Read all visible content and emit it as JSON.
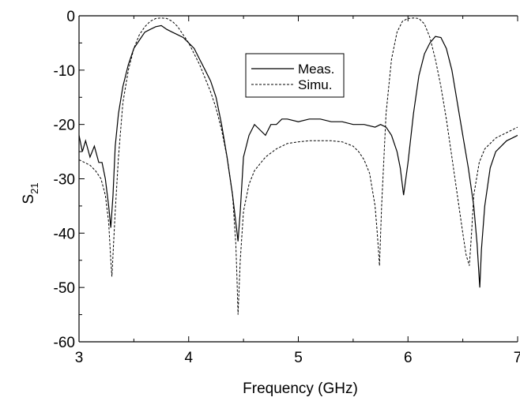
{
  "chart_data": {
    "type": "line",
    "xlabel": "Frequency (GHz)",
    "ylabel_main": "S",
    "ylabel_sub": "21",
    "xlim": [
      3,
      7
    ],
    "ylim": [
      -60,
      0
    ],
    "xticks": [
      3,
      4,
      5,
      6,
      7
    ],
    "xtick_labels": [
      "3",
      "4",
      "5",
      "6",
      "7"
    ],
    "yticks": [
      0,
      -10,
      -20,
      -30,
      -40,
      -50,
      -60
    ],
    "ytick_labels": [
      "0",
      "-10",
      "-20",
      "-30",
      "-40",
      "-50",
      "-60"
    ],
    "grid": false,
    "legend_position": "top-center",
    "series": [
      {
        "name": "Meas.",
        "style": "solid",
        "x": [
          3.0,
          3.03,
          3.06,
          3.1,
          3.14,
          3.18,
          3.21,
          3.24,
          3.27,
          3.29,
          3.31,
          3.33,
          3.36,
          3.4,
          3.45,
          3.5,
          3.55,
          3.6,
          3.65,
          3.7,
          3.75,
          3.8,
          3.85,
          3.9,
          3.95,
          4.0,
          4.05,
          4.1,
          4.15,
          4.2,
          4.25,
          4.3,
          4.35,
          4.4,
          4.43,
          4.45,
          4.47,
          4.5,
          4.55,
          4.6,
          4.65,
          4.7,
          4.75,
          4.8,
          4.85,
          4.9,
          5.0,
          5.1,
          5.2,
          5.3,
          5.4,
          5.5,
          5.6,
          5.7,
          5.75,
          5.8,
          5.85,
          5.9,
          5.93,
          5.96,
          6.0,
          6.05,
          6.1,
          6.15,
          6.2,
          6.25,
          6.3,
          6.35,
          6.4,
          6.45,
          6.5,
          6.55,
          6.6,
          6.63,
          6.655,
          6.67,
          6.7,
          6.75,
          6.8,
          6.85,
          6.9,
          6.95,
          7.0
        ],
        "y": [
          -22,
          -25,
          -23,
          -26,
          -24,
          -27,
          -27,
          -30,
          -35,
          -39,
          -33,
          -24,
          -18,
          -13,
          -9,
          -6,
          -4.5,
          -3,
          -2.5,
          -2,
          -1.8,
          -2.5,
          -3,
          -3.5,
          -4,
          -5,
          -6,
          -8,
          -10,
          -12,
          -15,
          -20,
          -26,
          -33,
          -38,
          -41.5,
          -36,
          -26,
          -22,
          -20,
          -21,
          -22,
          -20,
          -20,
          -19,
          -19,
          -19.5,
          -19,
          -19,
          -19.5,
          -19.5,
          -20,
          -20,
          -20.5,
          -20,
          -20.5,
          -22,
          -25,
          -28,
          -33,
          -27,
          -18,
          -11,
          -7,
          -5,
          -3.8,
          -4,
          -6,
          -10,
          -16,
          -22,
          -28,
          -35,
          -42,
          -50,
          -43,
          -35,
          -28,
          -25,
          -24,
          -23,
          -22.5,
          -22
        ]
      },
      {
        "name": "Simu.",
        "style": "dashed",
        "x": [
          3.0,
          3.05,
          3.1,
          3.15,
          3.2,
          3.24,
          3.27,
          3.29,
          3.3,
          3.31,
          3.33,
          3.36,
          3.4,
          3.45,
          3.5,
          3.55,
          3.6,
          3.65,
          3.7,
          3.75,
          3.8,
          3.85,
          3.9,
          3.95,
          4.0,
          4.05,
          4.1,
          4.15,
          4.2,
          4.25,
          4.3,
          4.35,
          4.4,
          4.43,
          4.44,
          4.45,
          4.47,
          4.5,
          4.55,
          4.6,
          4.7,
          4.8,
          4.9,
          5.0,
          5.1,
          5.2,
          5.3,
          5.4,
          5.5,
          5.55,
          5.6,
          5.65,
          5.7,
          5.72,
          5.74,
          5.76,
          5.8,
          5.85,
          5.9,
          5.95,
          6.0,
          6.05,
          6.1,
          6.15,
          6.2,
          6.25,
          6.3,
          6.35,
          6.4,
          6.45,
          6.5,
          6.53,
          6.56,
          6.58,
          6.6,
          6.65,
          6.7,
          6.8,
          6.9,
          7.0
        ],
        "y": [
          -26.5,
          -27,
          -27.5,
          -28.5,
          -30,
          -33,
          -38,
          -45,
          -48,
          -44,
          -36,
          -26,
          -16,
          -10,
          -6,
          -3.5,
          -2,
          -1,
          -0.5,
          -0.4,
          -0.5,
          -1,
          -2,
          -3.5,
          -5,
          -7,
          -9,
          -11.5,
          -14,
          -17,
          -21,
          -26,
          -33,
          -42,
          -48,
          -55,
          -45,
          -36,
          -31,
          -28.5,
          -26,
          -24.5,
          -23.5,
          -23.2,
          -23,
          -23,
          -23,
          -23.2,
          -24,
          -25,
          -26.5,
          -29,
          -35,
          -40,
          -46,
          -35,
          -18,
          -8,
          -3,
          -1,
          -0.5,
          -0.4,
          -0.5,
          -1.5,
          -4,
          -8,
          -13,
          -19,
          -26,
          -33,
          -40,
          -44,
          -46,
          -40,
          -33,
          -27,
          -24.5,
          -22.5,
          -21.5,
          -20.5
        ]
      }
    ]
  }
}
